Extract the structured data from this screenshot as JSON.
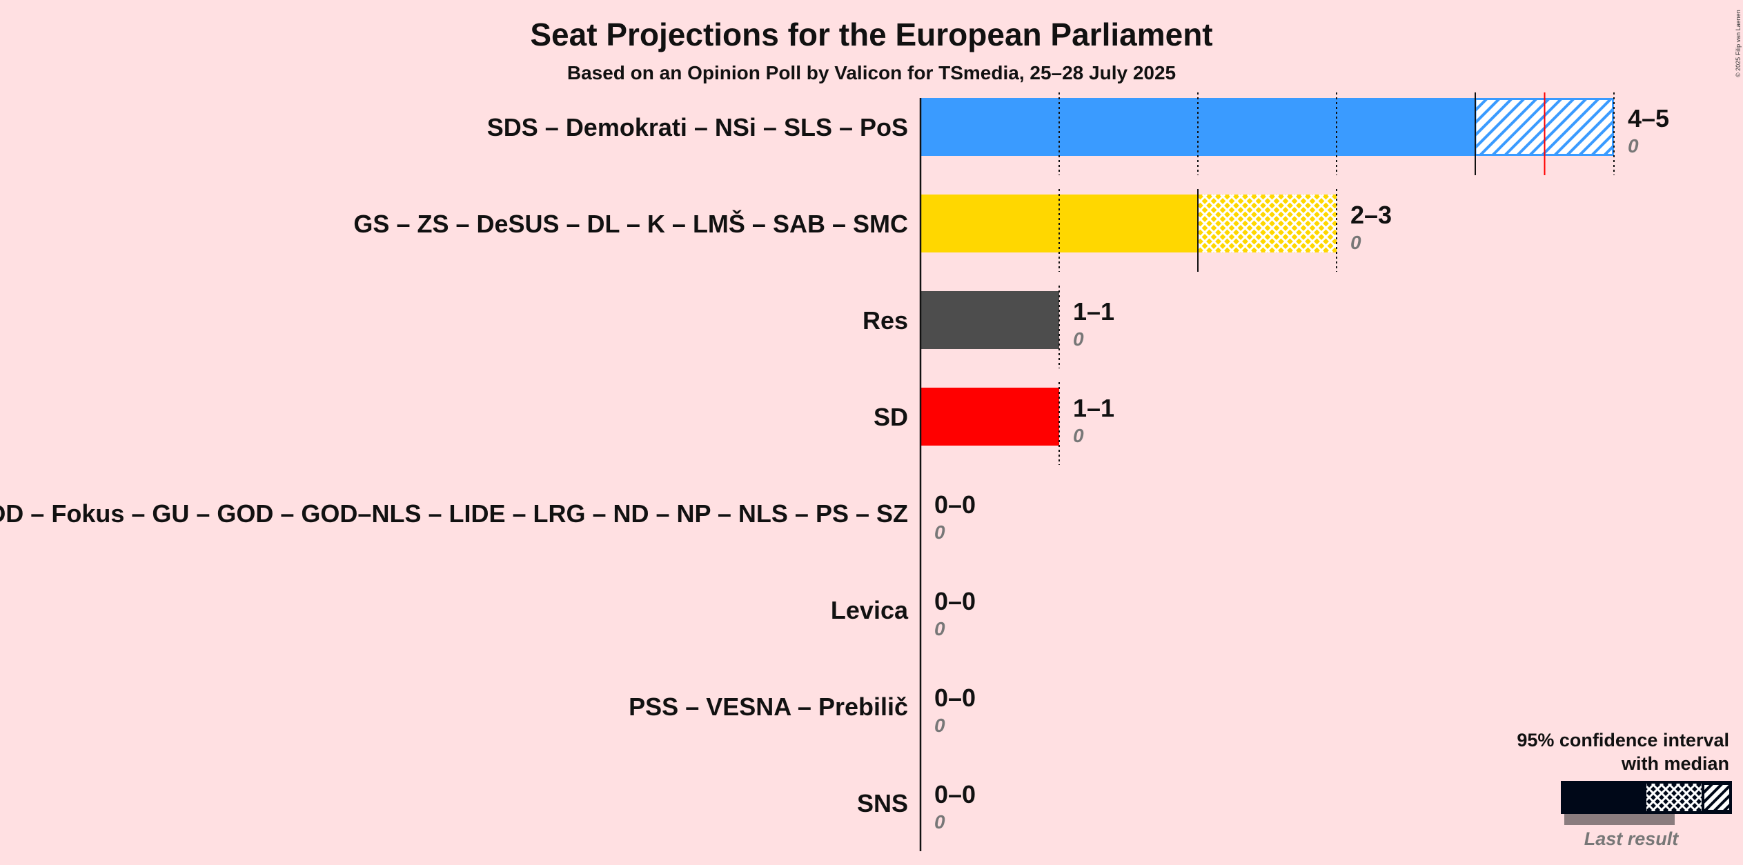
{
  "chart_data": {
    "type": "bar",
    "title": "Seat Projections for the European Parliament",
    "subtitle": "Based on an Opinion Poll by Valicon for TSmedia, 25–28 July 2025",
    "x_max_seats": 5,
    "categories": [
      "SDS – Demokrati – NSi – SLS – PoS",
      "GS – ZS – DeSUS – DL – K – LMŠ – SAB – SMC",
      "Res",
      "SD",
      "DD – Fokus – GU – GOD – GOD–NLS – LIDE – LRG – ND – NP – NLS – PS – SZ",
      "Levica",
      "PSS – VESNA – Prebilič",
      "SNS"
    ],
    "series": [
      {
        "party": "SDS – Demokrati – NSi – SLS – PoS",
        "low": 4,
        "median": 4.5,
        "high": 5,
        "range_label": "4–5",
        "last_result": 0,
        "last_label": "0",
        "color": "#3A9BFF",
        "pattern": "hatch"
      },
      {
        "party": "GS – ZS – DeSUS – DL – K – LMŠ – SAB – SMC",
        "low": 2,
        "median": 2,
        "high": 3,
        "range_label": "2–3",
        "last_result": 0,
        "last_label": "0",
        "color": "#FFD700",
        "pattern": "crosshatch"
      },
      {
        "party": "Res",
        "low": 1,
        "median": 1,
        "high": 1,
        "range_label": "1–1",
        "last_result": 0,
        "last_label": "0",
        "color": "#4D4D4D",
        "pattern": "none"
      },
      {
        "party": "SD",
        "low": 1,
        "median": 1,
        "high": 1,
        "range_label": "1–1",
        "last_result": 0,
        "last_label": "0",
        "color": "#FF0000",
        "pattern": "none"
      },
      {
        "party": "DD – Fokus – GU – GOD – GOD–NLS – LIDE – LRG – ND – NP – NLS – PS – SZ",
        "low": 0,
        "median": 0,
        "high": 0,
        "range_label": "0–0",
        "last_result": 0,
        "last_label": "0",
        "color": "#888888",
        "pattern": "none"
      },
      {
        "party": "Levica",
        "low": 0,
        "median": 0,
        "high": 0,
        "range_label": "0–0",
        "last_result": 0,
        "last_label": "0",
        "color": "#888888",
        "pattern": "none"
      },
      {
        "party": "PSS – VESNA – Prebilič",
        "low": 0,
        "median": 0,
        "high": 0,
        "range_label": "0–0",
        "last_result": 0,
        "last_label": "0",
        "color": "#888888",
        "pattern": "none"
      },
      {
        "party": "SNS",
        "low": 0,
        "median": 0,
        "high": 0,
        "range_label": "0–0",
        "last_result": 0,
        "last_label": "0",
        "color": "#888888",
        "pattern": "none"
      }
    ],
    "majority_marker_seats": 4.5,
    "legend": {
      "line1": "95% confidence interval",
      "line2": "with median",
      "last_result": "Last result",
      "placement": "bottom-right"
    },
    "copyright": "© 2025 Filip van Laenen",
    "colors": {
      "background": "#FFE0E2",
      "median_marker": "#FF0000",
      "legend_dark": "#000818"
    }
  }
}
